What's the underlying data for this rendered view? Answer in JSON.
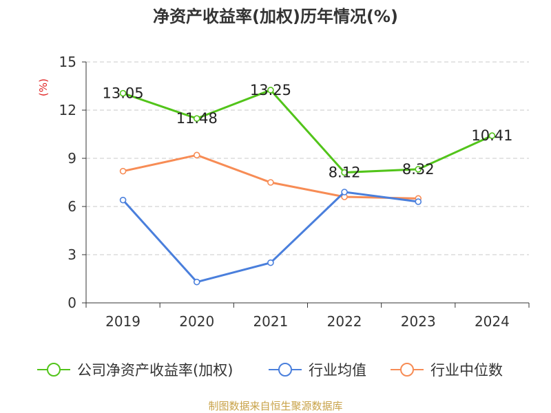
{
  "title": "净资产收益率(加权)历年情况(%)",
  "source": "制图数据来自恒生聚源数据库",
  "chart_data": {
    "type": "line",
    "title": "净资产收益率(加权)历年情况(%)",
    "ylabel": "(%)",
    "xlabel": "",
    "ylim": [
      0,
      15
    ],
    "yticks": [
      "0",
      "3",
      "6",
      "9",
      "12",
      "15"
    ],
    "categories": [
      "2019",
      "2020",
      "2021",
      "2022",
      "2023",
      "2024"
    ],
    "grid": true,
    "legend_position": "bottom",
    "series": [
      {
        "name": "公司净资产收益率(加权)",
        "color": "#52c41a",
        "values": [
          13.05,
          11.48,
          13.25,
          8.12,
          8.32,
          10.41
        ],
        "labels": [
          "13.05",
          "11.48",
          "13.25",
          "8.12",
          "8.32",
          "10.41"
        ]
      },
      {
        "name": "行业均值",
        "color": "#4a7fdc",
        "values": [
          6.4,
          1.3,
          2.5,
          6.9,
          6.3,
          null
        ]
      },
      {
        "name": "行业中位数",
        "color": "#f78c55",
        "values": [
          8.2,
          9.2,
          7.5,
          6.6,
          6.5,
          null
        ]
      }
    ]
  }
}
